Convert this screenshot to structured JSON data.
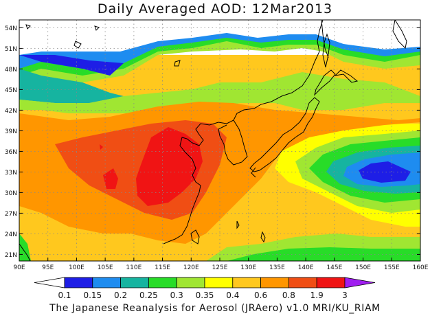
{
  "title": "Daily Averaged AOD: 12Mar2013",
  "footer": "The Japanese Reanalysis for Aerosol (JRAero) v1.0 MRI/KU_RIAM",
  "map": {
    "lon_labels": [
      "90E",
      "95E",
      "100E",
      "105E",
      "110E",
      "115E",
      "120E",
      "125E",
      "130E",
      "135E",
      "140E",
      "145E",
      "150E",
      "155E",
      "160E"
    ],
    "lat_labels": [
      "54N",
      "51N",
      "48N",
      "45N",
      "42N",
      "39N",
      "36N",
      "33N",
      "30N",
      "27N",
      "24N",
      "21N"
    ]
  },
  "colorbar": {
    "labels": [
      "0.1",
      "0.15",
      "0.2",
      "0.25",
      "0.3",
      "0.35",
      "0.4",
      "0.6",
      "0.8",
      "1.9",
      "3"
    ],
    "colors": [
      "#ffffff",
      "#1e1ee6",
      "#1e8cf0",
      "#16b4a0",
      "#28dc28",
      "#a0e632",
      "#ffff00",
      "#ffc81e",
      "#ff9600",
      "#f04e14",
      "#f01414",
      "#a01ef0"
    ]
  }
}
